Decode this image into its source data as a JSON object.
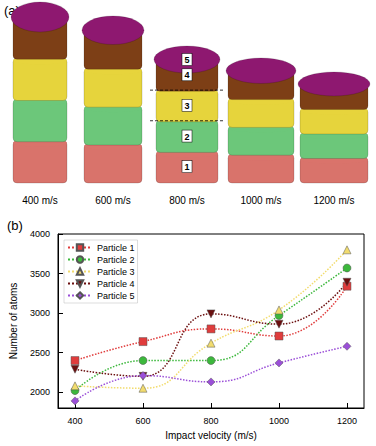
{
  "panel_a": {
    "label": "(a)",
    "stacks": [
      "400 m/s",
      "600 m/s",
      "800 m/s",
      "1000 m/s",
      "1200 m/s"
    ],
    "layer_labels": [
      "1",
      "2",
      "3",
      "4",
      "5"
    ]
  },
  "chart_data": {
    "type": "line",
    "title": "(b)",
    "x_label": "Impact velocity (m/s)",
    "y_label": "Number of atoms",
    "x": [
      400,
      600,
      800,
      1000,
      1200
    ],
    "series": [
      {
        "name": "Particle 1",
        "color": "#e03c3c",
        "marker": "square",
        "values": [
          2400,
          2640,
          2800,
          2710,
          3340
        ]
      },
      {
        "name": "Particle 2",
        "color": "#3cb83c",
        "marker": "circle",
        "values": [
          2020,
          2400,
          2400,
          2970,
          3570
        ]
      },
      {
        "name": "Particle 3",
        "color": "#f2dc6e",
        "marker": "triangle",
        "values": [
          2080,
          2050,
          2620,
          3040,
          3800
        ]
      },
      {
        "name": "Particle 4",
        "color": "#6b0f0f",
        "marker": "triangle-down",
        "values": [
          2290,
          2200,
          2990,
          2860,
          3390
        ]
      },
      {
        "name": "Particle 5",
        "color": "#9b4fd8",
        "marker": "diamond",
        "values": [
          1890,
          2210,
          2130,
          2370,
          2580
        ]
      }
    ],
    "line_style": "dotted",
    "xlim": [
      350,
      1250
    ],
    "xticks": [
      400,
      600,
      800,
      1000,
      1200
    ],
    "ylim": [
      1800,
      4000
    ],
    "yticks": [
      2000,
      2500,
      3000,
      3500,
      4000
    ],
    "grid": false,
    "legend": "upper left"
  }
}
